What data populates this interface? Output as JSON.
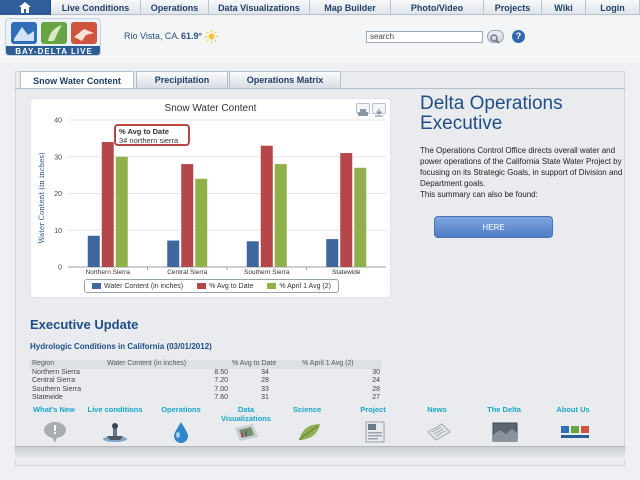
{
  "nav": {
    "home_icon": "home-icon",
    "items": [
      "Live Conditions",
      "Operations",
      "Data Visualizations",
      "Map Builder",
      "Photo/Video",
      "Projects",
      "Wiki",
      "Login"
    ]
  },
  "header": {
    "logo_text": "BAY-DELTA LIVE",
    "location": "Rio Vista, CA.",
    "temperature": "61.9°",
    "weather_icon": "sun-icon",
    "search_placeholder": "search",
    "help_label": "?"
  },
  "tabs": [
    "Snow Water Content",
    "Precipitation",
    "Operations Matrix"
  ],
  "colors": {
    "blue": "#3e679f",
    "red": "#b5474a",
    "green": "#8fb04a",
    "accent": "#1f4e86"
  },
  "chart_data": {
    "type": "bar",
    "title": "Snow Water Content",
    "ylabel": "Water Content (in inches)",
    "ylim": [
      0,
      40
    ],
    "yticks": [
      "0",
      "10",
      "20",
      "30",
      "40"
    ],
    "categories": [
      "Northern Sierra",
      "Central Sierra",
      "Southern Sierra",
      "Statewide"
    ],
    "series": [
      {
        "name": "Water Content (in inches)",
        "values": [
          8.5,
          7.2,
          7.0,
          7.6
        ]
      },
      {
        "name": "% Avg to Date",
        "values": [
          34,
          28,
          33,
          31
        ]
      },
      {
        "name": "% April 1 Avg (2)",
        "values": [
          30,
          24,
          28,
          27
        ]
      }
    ],
    "tooltip": {
      "title": "% Avg to Date",
      "text": "34 northern sierra"
    },
    "legend_position": "bottom"
  },
  "delta": {
    "title": "Delta Operations Executive",
    "description": "The Operations Control Office directs overall water and power operations of the California State Water Project by focusing on its Strategic Goals, in support of Division and Department goals.",
    "found_text": "This summary can also be found:",
    "button": "HERE"
  },
  "exec": {
    "title": "Executive Update",
    "hydro_title": "Hydrologic Conditions in California (03/01/2012)",
    "headers": [
      "Region",
      "Water Content (in inches)",
      "% Avg to Date",
      "% April 1 Avg (2)"
    ],
    "rows": [
      [
        "Northern Sierra",
        "8.50",
        "34",
        "30"
      ],
      [
        "Central Sierra",
        "7.20",
        "28",
        "24"
      ],
      [
        "Southern Sierra",
        "7.00",
        "33",
        "28"
      ],
      [
        "Statewide",
        "7.60",
        "31",
        "27"
      ]
    ]
  },
  "bottom_nav": [
    {
      "label": "What's New",
      "icon": "speech-bubble-icon"
    },
    {
      "label": "Live conditions",
      "icon": "webcam-boat-icon"
    },
    {
      "label": "Operations",
      "icon": "water-drop-icon"
    },
    {
      "label": "Data Visualizations",
      "icon": "chart-map-icon"
    },
    {
      "label": "Science",
      "icon": "leaf-icon"
    },
    {
      "label": "Project",
      "icon": "document-icon"
    },
    {
      "label": "News",
      "icon": "newspaper-icon"
    },
    {
      "label": "The Delta",
      "icon": "delta-photo-icon"
    },
    {
      "label": "About Us",
      "icon": "logo-icon"
    }
  ]
}
